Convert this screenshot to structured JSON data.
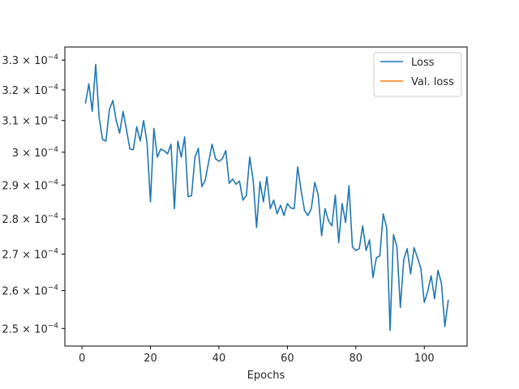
{
  "chart_data": {
    "type": "line",
    "xlabel": "Epochs",
    "ylabel": "",
    "xlim": [
      -5,
      112.5
    ],
    "ylim": [
      0.0002455,
      0.0003345
    ],
    "y_scale": "log",
    "x_ticks": [
      0,
      20,
      40,
      60,
      80,
      100
    ],
    "x_tick_labels": [
      "0",
      "20",
      "40",
      "60",
      "80",
      "100"
    ],
    "y_ticks": [
      0.00025,
      0.00026,
      0.00027,
      0.00028,
      0.00029,
      0.0003,
      0.00031,
      0.00032,
      0.00033
    ],
    "y_tick_mantissas": [
      "2.5",
      "2.6",
      "2.7",
      "2.8",
      "2.9",
      "3",
      "3.1",
      "3.2",
      "3.3"
    ],
    "y_tick_base": "10",
    "y_tick_exponent": "−4",
    "legend_position": "top-right",
    "grid": false,
    "series": [
      {
        "name": "Loss",
        "color": "#1f77b4",
        "x": [
          1,
          2,
          3,
          4,
          5,
          6,
          7,
          8,
          9,
          10,
          11,
          12,
          13,
          14,
          15,
          16,
          17,
          18,
          19,
          20,
          21,
          22,
          23,
          24,
          25,
          26,
          27,
          28,
          29,
          30,
          31,
          32,
          33,
          34,
          35,
          36,
          37,
          38,
          39,
          40,
          41,
          42,
          43,
          44,
          45,
          46,
          47,
          48,
          49,
          50,
          51,
          52,
          53,
          54,
          55,
          56,
          57,
          58,
          59,
          60,
          61,
          62,
          63,
          64,
          65,
          66,
          67,
          68,
          69,
          70,
          71,
          72,
          73,
          74,
          75,
          76,
          77,
          78,
          79,
          80,
          81,
          82,
          83,
          84,
          85,
          86,
          87,
          88,
          89,
          90,
          91,
          92,
          93,
          94,
          95,
          96,
          97,
          98,
          99,
          100,
          101,
          102,
          103,
          104,
          105,
          106,
          107
        ],
        "y": [
          0.0003155,
          0.000322,
          0.000313,
          0.0003285,
          0.000311,
          0.000304,
          0.0003035,
          0.0003135,
          0.0003165,
          0.00031,
          0.000306,
          0.000313,
          0.000307,
          0.000301,
          0.0003008,
          0.000308,
          0.0003035,
          0.00031,
          0.000303,
          0.000285,
          0.0003075,
          0.0002985,
          0.000301,
          0.0003005,
          0.0002995,
          0.0003025,
          0.000283,
          0.0003035,
          0.0002985,
          0.0003048,
          0.0002865,
          0.0002868,
          0.0002985,
          0.0003012,
          0.0002895,
          0.0002915,
          0.000297,
          0.0003025,
          0.000298,
          0.0002972,
          0.000298,
          0.0003005,
          0.0002905,
          0.0002918,
          0.0002902,
          0.0002912,
          0.0002855,
          0.0002868,
          0.0002985,
          0.0002915,
          0.0002775,
          0.000291,
          0.000285,
          0.0002925,
          0.000283,
          0.0002855,
          0.0002815,
          0.000284,
          0.000281,
          0.0002845,
          0.0002832,
          0.000283,
          0.0002955,
          0.0002885,
          0.0002825,
          0.000281,
          0.000283,
          0.0002908,
          0.000287,
          0.0002752,
          0.000283,
          0.0002795,
          0.000278,
          0.000287,
          0.0002732,
          0.0002845,
          0.000279,
          0.0002898,
          0.000272,
          0.000271,
          0.0002715,
          0.000278,
          0.000271,
          0.000274,
          0.0002635,
          0.000269,
          0.0002695,
          0.0002815,
          0.0002775,
          0.0002495,
          0.0002755,
          0.000272,
          0.0002555,
          0.0002685,
          0.0002715,
          0.0002645,
          0.0002718,
          0.000269,
          0.000266,
          0.0002568,
          0.0002598,
          0.000264,
          0.0002578,
          0.0002655,
          0.000262,
          0.0002505,
          0.0002575
        ]
      },
      {
        "name": "Val. loss",
        "color": "#ff7f0e",
        "x": [],
        "y": []
      }
    ]
  }
}
